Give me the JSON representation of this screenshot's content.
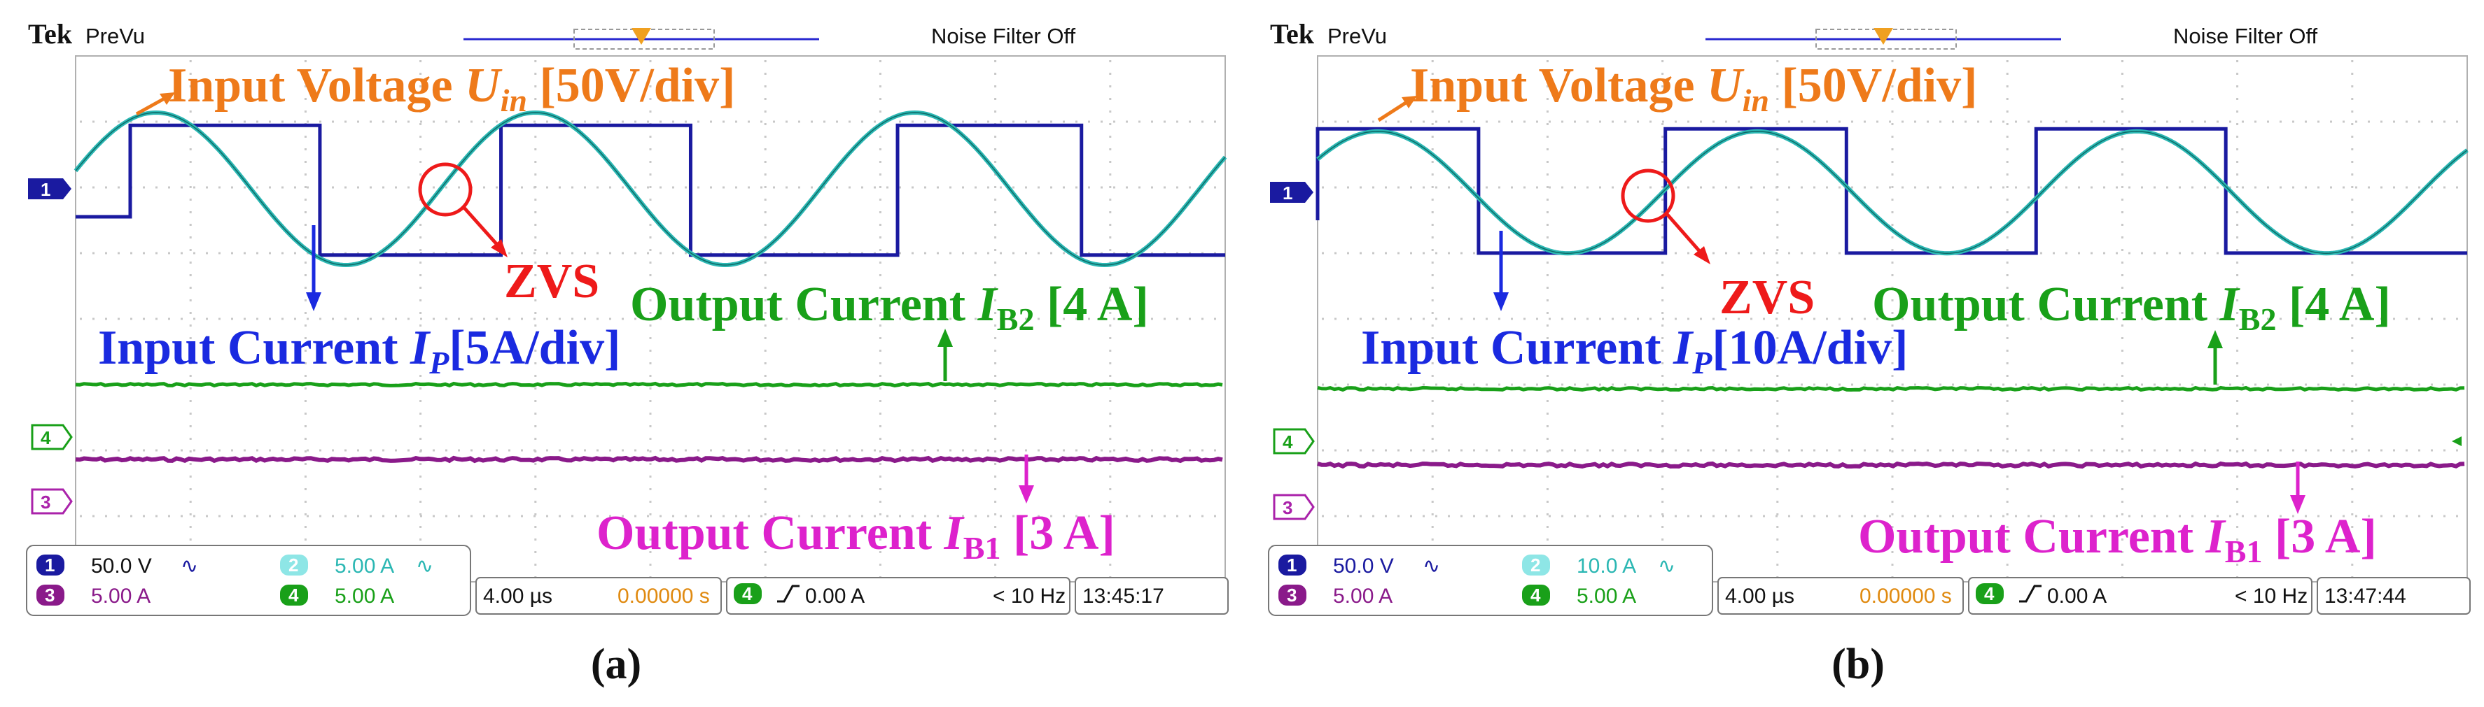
{
  "header": {
    "brand": "Tek",
    "mode": "PreVu",
    "filter": "Noise Filter Off"
  },
  "chart_data": [
    {
      "type": "line",
      "caption": "(a)",
      "ylabel": "",
      "xlabel": "",
      "channel_markers": [
        "1",
        "4",
        "3"
      ],
      "annotations": {
        "voltage": {
          "text": "Input Voltage ",
          "symbol": "U",
          "sub": "in",
          "tail": " [50V/div]"
        },
        "input_current": {
          "text": "Input Current ",
          "symbol": "I",
          "sub": "P",
          "tail": "[5A/div]"
        },
        "zvs": "ZVS",
        "output_b2": {
          "text": "Output Current ",
          "symbol": "I",
          "sub": "B2",
          "tail": " [4 A]"
        },
        "output_b1": {
          "text": "Output Current  ",
          "symbol": "I",
          "sub": "B1",
          "tail": " [3 A]"
        }
      },
      "settings": {
        "ch1": "50.0 V",
        "ch2": "5.00 A",
        "ch3": "5.00 A",
        "ch4": "5.00 A",
        "timebase": "4.00 µs",
        "position": "0.00000 s",
        "trigger_channel": "4",
        "trigger_level": "0.00 A",
        "frequency": "< 10 Hz",
        "time": "13:45:17"
      },
      "x_range_us": [
        0,
        40
      ],
      "series": [
        {
          "channel": "1",
          "color": "#1a1aa0",
          "kind": "square",
          "period_us": 13.3,
          "edges_us": [
            1.9,
            8.5,
            14.8,
            21.4,
            28.6,
            35.0
          ],
          "level_high": 2.3,
          "level_low": -2.4
        },
        {
          "channel": "2",
          "color": "#2bb7b3",
          "kind": "sine",
          "period_us": 13.2,
          "amplitude_div": 2.0,
          "zero_cross_us": 12.7
        },
        {
          "channel": "4",
          "color": "#19a019",
          "kind": "dc",
          "value": 4
        },
        {
          "channel": "3",
          "color": "#8a1a8a",
          "kind": "dc",
          "value": 3
        }
      ]
    },
    {
      "type": "line",
      "caption": "(b)",
      "ylabel": "",
      "xlabel": "",
      "channel_markers": [
        "1",
        "4",
        "3"
      ],
      "annotations": {
        "voltage": {
          "text": "Input Voltage ",
          "symbol": "U",
          "sub": "in",
          "tail": " [50V/div]"
        },
        "input_current": {
          "text": "Input Current ",
          "symbol": "I",
          "sub": "P",
          "tail": "[10A/div]"
        },
        "zvs": "ZVS",
        "output_b2": {
          "text": "Output Current ",
          "symbol": "I",
          "sub": "B2",
          "tail": " [4 A]"
        },
        "output_b1": {
          "text": "Output Current  ",
          "symbol": "I",
          "sub": "B1",
          "tail": " [3 A]"
        }
      },
      "settings": {
        "ch1": "50.0 V",
        "ch2": "10.0 A",
        "ch3": "5.00 A",
        "ch4": "5.00 A",
        "timebase": "4.00 µs",
        "position": "0.00000 s",
        "trigger_channel": "4",
        "trigger_level": "0.00 A",
        "frequency": "< 10 Hz",
        "time": "13:47:44"
      },
      "x_range_us": [
        0,
        40
      ],
      "series": [
        {
          "channel": "1",
          "color": "#1a1aa0",
          "kind": "square",
          "period_us": 13.2,
          "edges_us": [
            0,
            5.6,
            12.1,
            18.4,
            25.0,
            31.6
          ],
          "level_high": 2.3,
          "level_low": -2.2
        },
        {
          "channel": "2",
          "color": "#2bb7b3",
          "kind": "sine",
          "period_us": 13.2,
          "amplitude_div": 1.6,
          "zero_cross_us": 12.0
        },
        {
          "channel": "4",
          "color": "#19a019",
          "kind": "dc",
          "value": 4
        },
        {
          "channel": "3",
          "color": "#8a1a8a",
          "kind": "dc",
          "value": 3
        }
      ]
    }
  ]
}
